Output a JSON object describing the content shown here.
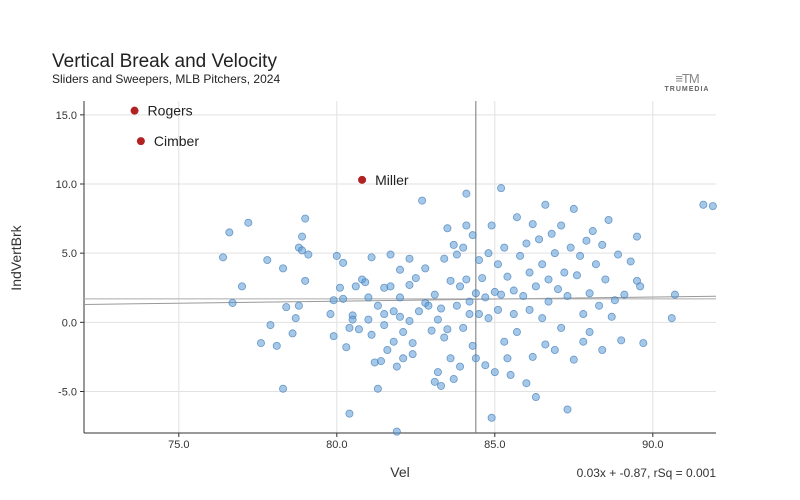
{
  "chart_data": {
    "type": "scatter",
    "title": "Vertical Break and Velocity",
    "subtitle": "Sliders and Sweepers, MLB Pitchers, 2024",
    "xlabel": "Vel",
    "ylabel": "IndVertBrk",
    "xlim": [
      72.0,
      92.0
    ],
    "ylim": [
      -8.0,
      16.0
    ],
    "xticks": [
      "75.0",
      "80.0",
      "85.0",
      "90.0"
    ],
    "yticks": [
      "15.0",
      "10.0",
      "5.0",
      "0.0",
      "-5.0"
    ],
    "grid": true,
    "reference_x": 84.4,
    "regression": {
      "label": "0.03x + -0.87, rSq = 0.001",
      "slope": 0.03,
      "intercept": -0.87
    },
    "highlighted": [
      {
        "label": "Rogers",
        "x": 73.6,
        "y": 15.3
      },
      {
        "label": "Cimber",
        "x": 73.8,
        "y": 13.1
      },
      {
        "label": "Miller",
        "x": 80.8,
        "y": 10.3
      }
    ],
    "points": [
      [
        76.4,
        4.7
      ],
      [
        76.6,
        6.5
      ],
      [
        76.7,
        1.4
      ],
      [
        77.0,
        2.6
      ],
      [
        77.2,
        7.2
      ],
      [
        77.6,
        -1.5
      ],
      [
        77.8,
        4.5
      ],
      [
        77.9,
        -0.2
      ],
      [
        78.1,
        -1.7
      ],
      [
        78.3,
        3.9
      ],
      [
        78.3,
        -4.8
      ],
      [
        78.4,
        1.1
      ],
      [
        78.6,
        -0.8
      ],
      [
        78.7,
        0.3
      ],
      [
        78.8,
        1.2
      ],
      [
        78.8,
        5.4
      ],
      [
        78.9,
        6.2
      ],
      [
        78.9,
        5.2
      ],
      [
        79.0,
        7.5
      ],
      [
        79.0,
        3.0
      ],
      [
        79.1,
        4.9
      ],
      [
        79.8,
        0.6
      ],
      [
        79.9,
        1.6
      ],
      [
        79.9,
        -1.0
      ],
      [
        80.0,
        4.8
      ],
      [
        80.1,
        2.5
      ],
      [
        80.2,
        1.7
      ],
      [
        80.2,
        4.3
      ],
      [
        80.3,
        -1.8
      ],
      [
        80.4,
        -0.4
      ],
      [
        80.4,
        -6.6
      ],
      [
        80.5,
        0.5
      ],
      [
        80.5,
        0.2
      ],
      [
        80.6,
        2.6
      ],
      [
        80.7,
        -0.5
      ],
      [
        80.8,
        3.1
      ],
      [
        80.9,
        2.9
      ],
      [
        81.0,
        1.8
      ],
      [
        81.0,
        0.2
      ],
      [
        81.1,
        4.7
      ],
      [
        81.1,
        -0.9
      ],
      [
        81.2,
        -2.9
      ],
      [
        81.3,
        -4.8
      ],
      [
        81.3,
        1.2
      ],
      [
        81.4,
        -2.8
      ],
      [
        81.5,
        2.5
      ],
      [
        81.5,
        0.6
      ],
      [
        81.5,
        -0.2
      ],
      [
        81.6,
        -2.0
      ],
      [
        81.7,
        4.9
      ],
      [
        81.7,
        2.6
      ],
      [
        81.8,
        0.8
      ],
      [
        81.8,
        -1.4
      ],
      [
        81.9,
        -7.9
      ],
      [
        81.9,
        -3.2
      ],
      [
        82.0,
        3.8
      ],
      [
        82.0,
        1.8
      ],
      [
        82.0,
        0.4
      ],
      [
        82.1,
        -0.7
      ],
      [
        82.1,
        -2.6
      ],
      [
        82.3,
        4.6
      ],
      [
        82.3,
        2.7
      ],
      [
        82.3,
        0.1
      ],
      [
        82.4,
        -1.5
      ],
      [
        82.4,
        -2.3
      ],
      [
        82.5,
        3.2
      ],
      [
        82.6,
        0.8
      ],
      [
        82.7,
        8.8
      ],
      [
        82.8,
        1.4
      ],
      [
        82.8,
        3.9
      ],
      [
        82.9,
        1.2
      ],
      [
        83.0,
        -0.6
      ],
      [
        83.1,
        -4.3
      ],
      [
        83.1,
        2.0
      ],
      [
        83.2,
        -3.6
      ],
      [
        83.2,
        0.2
      ],
      [
        83.3,
        1.0
      ],
      [
        83.3,
        -4.6
      ],
      [
        83.4,
        4.6
      ],
      [
        83.4,
        -1.1
      ],
      [
        83.5,
        6.8
      ],
      [
        83.5,
        -0.5
      ],
      [
        83.6,
        3.0
      ],
      [
        83.6,
        -2.6
      ],
      [
        83.7,
        5.6
      ],
      [
        83.7,
        -4.1
      ],
      [
        83.8,
        1.2
      ],
      [
        83.8,
        4.9
      ],
      [
        83.9,
        -3.2
      ],
      [
        83.9,
        2.6
      ],
      [
        84.0,
        5.4
      ],
      [
        84.0,
        -0.4
      ],
      [
        84.1,
        9.3
      ],
      [
        84.1,
        7.0
      ],
      [
        84.1,
        3.1
      ],
      [
        84.2,
        1.5
      ],
      [
        84.2,
        0.6
      ],
      [
        84.3,
        -1.7
      ],
      [
        84.3,
        6.3
      ],
      [
        84.4,
        2.1
      ],
      [
        84.4,
        -2.6
      ],
      [
        84.5,
        4.5
      ],
      [
        84.5,
        0.6
      ],
      [
        84.6,
        3.2
      ],
      [
        84.7,
        -3.1
      ],
      [
        84.7,
        1.8
      ],
      [
        84.8,
        5.0
      ],
      [
        84.8,
        0.3
      ],
      [
        84.9,
        -6.9
      ],
      [
        84.9,
        7.0
      ],
      [
        85.0,
        2.2
      ],
      [
        85.0,
        -3.6
      ],
      [
        85.1,
        0.9
      ],
      [
        85.1,
        4.2
      ],
      [
        85.2,
        9.7
      ],
      [
        85.2,
        2.0
      ],
      [
        85.3,
        5.4
      ],
      [
        85.3,
        -1.4
      ],
      [
        85.4,
        -2.6
      ],
      [
        85.4,
        3.3
      ],
      [
        85.5,
        -3.8
      ],
      [
        85.6,
        0.6
      ],
      [
        85.6,
        2.3
      ],
      [
        85.7,
        7.6
      ],
      [
        85.7,
        -0.7
      ],
      [
        85.8,
        4.8
      ],
      [
        85.9,
        1.9
      ],
      [
        86.0,
        5.7
      ],
      [
        86.0,
        -4.4
      ],
      [
        86.1,
        3.6
      ],
      [
        86.1,
        0.9
      ],
      [
        86.2,
        7.1
      ],
      [
        86.2,
        -2.5
      ],
      [
        86.3,
        2.6
      ],
      [
        86.3,
        -5.4
      ],
      [
        86.4,
        6.0
      ],
      [
        86.5,
        0.3
      ],
      [
        86.5,
        4.2
      ],
      [
        86.6,
        8.5
      ],
      [
        86.6,
        -1.6
      ],
      [
        86.7,
        3.1
      ],
      [
        86.7,
        1.5
      ],
      [
        86.8,
        6.4
      ],
      [
        86.9,
        -2.0
      ],
      [
        86.9,
        5.0
      ],
      [
        87.0,
        2.4
      ],
      [
        87.1,
        -0.4
      ],
      [
        87.1,
        7.0
      ],
      [
        87.2,
        3.6
      ],
      [
        87.3,
        -6.3
      ],
      [
        87.3,
        1.9
      ],
      [
        87.4,
        5.4
      ],
      [
        87.5,
        8.2
      ],
      [
        87.5,
        -2.7
      ],
      [
        87.6,
        3.4
      ],
      [
        87.7,
        4.8
      ],
      [
        87.8,
        0.6
      ],
      [
        87.8,
        -1.4
      ],
      [
        87.9,
        5.9
      ],
      [
        88.0,
        2.1
      ],
      [
        88.0,
        -0.7
      ],
      [
        88.1,
        6.6
      ],
      [
        88.2,
        4.2
      ],
      [
        88.3,
        1.2
      ],
      [
        88.4,
        -2.0
      ],
      [
        88.4,
        5.6
      ],
      [
        88.5,
        3.1
      ],
      [
        88.6,
        7.4
      ],
      [
        88.7,
        0.4
      ],
      [
        88.8,
        1.6
      ],
      [
        88.9,
        4.9
      ],
      [
        89.0,
        -1.3
      ],
      [
        89.1,
        2.0
      ],
      [
        89.3,
        4.4
      ],
      [
        89.5,
        3.0
      ],
      [
        89.5,
        6.2
      ],
      [
        89.6,
        2.6
      ],
      [
        89.7,
        -1.5
      ],
      [
        90.6,
        0.3
      ],
      [
        90.7,
        2.0
      ],
      [
        91.6,
        8.5
      ],
      [
        91.9,
        8.4
      ]
    ]
  }
}
